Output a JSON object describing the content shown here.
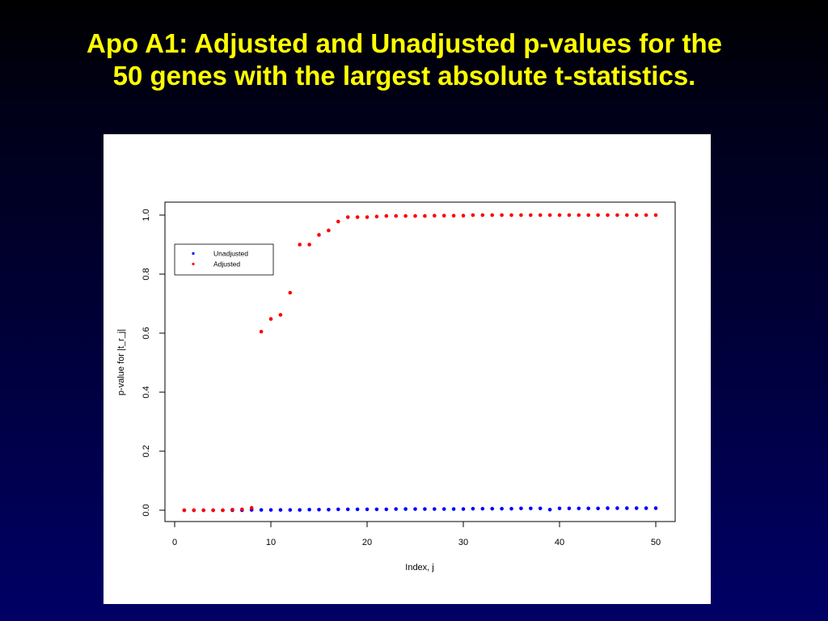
{
  "slide": {
    "title_line1": "Apo A1: Adjusted and Unadjusted p-values for the",
    "title_line2": "50 genes with the largest absolute t-statistics."
  },
  "colors": {
    "title": "#ffff00",
    "unadjusted": "#0000ff",
    "adjusted": "#ff0000",
    "panel": "#ffffff"
  },
  "chart_data": {
    "type": "scatter",
    "title": "",
    "xlabel": "Index, j",
    "ylabel": "p-value for |t_r_j|",
    "xlim": [
      0,
      50
    ],
    "ylim": [
      0,
      1
    ],
    "x_ticks": [
      "0",
      "10",
      "20",
      "30",
      "40",
      "50"
    ],
    "y_ticks": [
      "0.0",
      "0.2",
      "0.4",
      "0.6",
      "0.8",
      "1.0"
    ],
    "grid": false,
    "legend_position": "top-left",
    "x": [
      1,
      2,
      3,
      4,
      5,
      6,
      7,
      8,
      9,
      10,
      11,
      12,
      13,
      14,
      15,
      16,
      17,
      18,
      19,
      20,
      21,
      22,
      23,
      24,
      25,
      26,
      27,
      28,
      29,
      30,
      31,
      32,
      33,
      34,
      35,
      36,
      37,
      38,
      39,
      40,
      41,
      42,
      43,
      44,
      45,
      46,
      47,
      48,
      49,
      50
    ],
    "series": [
      {
        "name": "Unadjusted",
        "color": "#0000ff",
        "values": [
          0,
          0,
          0,
          0,
          0,
          0,
          0,
          0.001,
          0.001,
          0.001,
          0.001,
          0.001,
          0.001,
          0.002,
          0.002,
          0.002,
          0.003,
          0.003,
          0.003,
          0.003,
          0.003,
          0.003,
          0.004,
          0.004,
          0.004,
          0.004,
          0.004,
          0.004,
          0.004,
          0.004,
          0.005,
          0.005,
          0.005,
          0.005,
          0.005,
          0.006,
          0.006,
          0.006,
          0.002,
          0.006,
          0.006,
          0.006,
          0.006,
          0.006,
          0.007,
          0.007,
          0.007,
          0.007,
          0.007,
          0.007
        ]
      },
      {
        "name": "Adjusted",
        "color": "#ff0000",
        "values": [
          0,
          0,
          0,
          0,
          0,
          0.002,
          0.003,
          0.008,
          0.605,
          0.648,
          0.662,
          0.737,
          0.9,
          0.9,
          0.933,
          0.948,
          0.978,
          0.993,
          0.993,
          0.993,
          0.995,
          0.997,
          0.997,
          0.997,
          0.997,
          0.997,
          0.998,
          0.998,
          0.998,
          0.998,
          1.0,
          1.0,
          1.0,
          1.0,
          1.0,
          1.0,
          1.0,
          1.0,
          1.0,
          1.0,
          1.0,
          1.0,
          1.0,
          1.0,
          1.0,
          1.0,
          1.0,
          1.0,
          1.0,
          1.0
        ]
      }
    ]
  }
}
